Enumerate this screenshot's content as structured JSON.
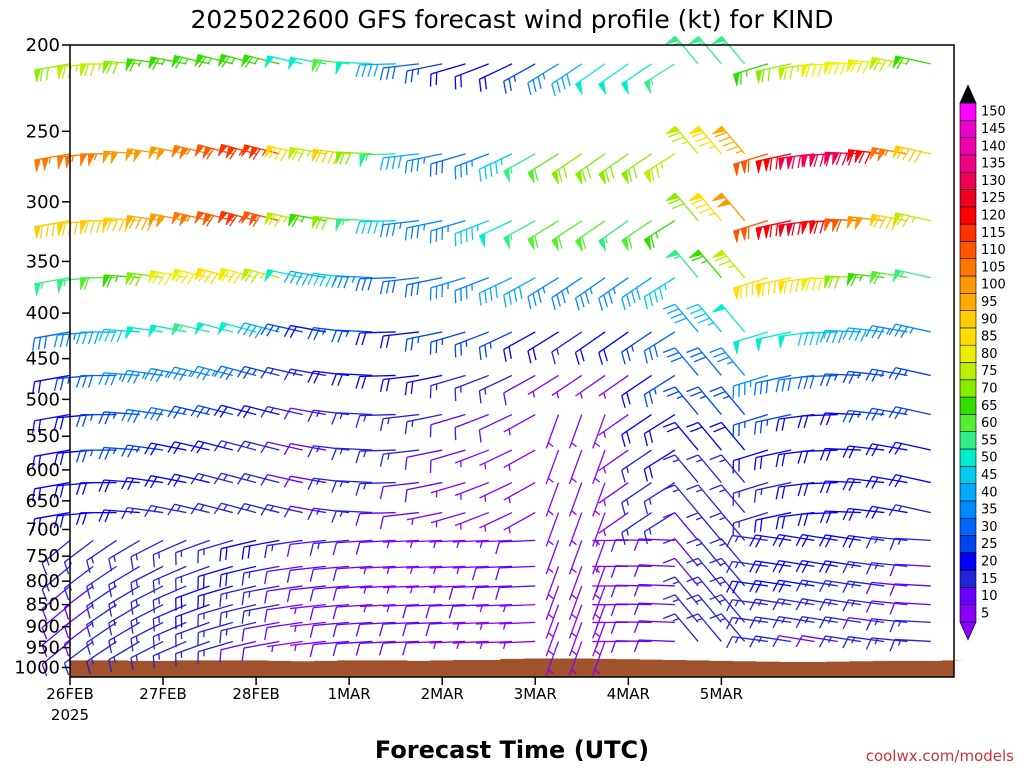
{
  "chart_data": {
    "type": "wind-barb",
    "title": "2025022600 GFS forecast wind profile (kt) for KIND",
    "xlabel": "Forecast Time (UTC)",
    "ylabel": "",
    "watermark": "coolwx.com/models",
    "x_ticks": [
      "26FEB",
      "27FEB",
      "28FEB",
      "1MAR",
      "2MAR",
      "3MAR",
      "4MAR",
      "5MAR"
    ],
    "x_year": "2025",
    "y_ticks": [
      200,
      250,
      300,
      350,
      400,
      450,
      500,
      550,
      600,
      650,
      700,
      750,
      800,
      850,
      900,
      950,
      1000
    ],
    "xlim_hours": [
      0,
      228
    ],
    "ylim_hpa": [
      200,
      1025
    ],
    "y_scale": "log-pressure",
    "time_step_hours": 6,
    "levels_hpa": [
      210,
      265,
      315,
      365,
      420,
      470,
      520,
      570,
      620,
      670,
      720,
      770,
      810,
      850,
      890,
      935
    ],
    "colorbar": {
      "labels": [
        5,
        10,
        15,
        20,
        25,
        30,
        35,
        40,
        45,
        50,
        55,
        60,
        65,
        70,
        75,
        80,
        85,
        90,
        95,
        100,
        105,
        110,
        115,
        120,
        125,
        130,
        135,
        140,
        145,
        150
      ],
      "colors": [
        "#8800ff",
        "#6600ff",
        "#2222dd",
        "#0000ff",
        "#0044ee",
        "#0066ff",
        "#0088ff",
        "#00aaff",
        "#00ccee",
        "#00eecc",
        "#33ee88",
        "#55ee33",
        "#33dd00",
        "#88ee00",
        "#bbee00",
        "#eeee00",
        "#ffdd00",
        "#ffcc00",
        "#ffaa00",
        "#ff9900",
        "#ff7700",
        "#ff5500",
        "#ff3300",
        "#ff0000",
        "#ee0022",
        "#ee0055",
        "#ee0088",
        "#ee00aa",
        "#ee00cc",
        "#ff00ff"
      ],
      "over_color": "#000000",
      "under_color": "#8800ff"
    },
    "terrain_color": "#a0522d",
    "surface_pressure_hpa": [
      982,
      982,
      982,
      983,
      983,
      982,
      982,
      982,
      982,
      983,
      984,
      983,
      982,
      982,
      982,
      983,
      982,
      981,
      981,
      978,
      977,
      977,
      977,
      978,
      979,
      980,
      981,
      982,
      983,
      984,
      985,
      986,
      986,
      985,
      984,
      983,
      983,
      983,
      982,
      981
    ]
  }
}
